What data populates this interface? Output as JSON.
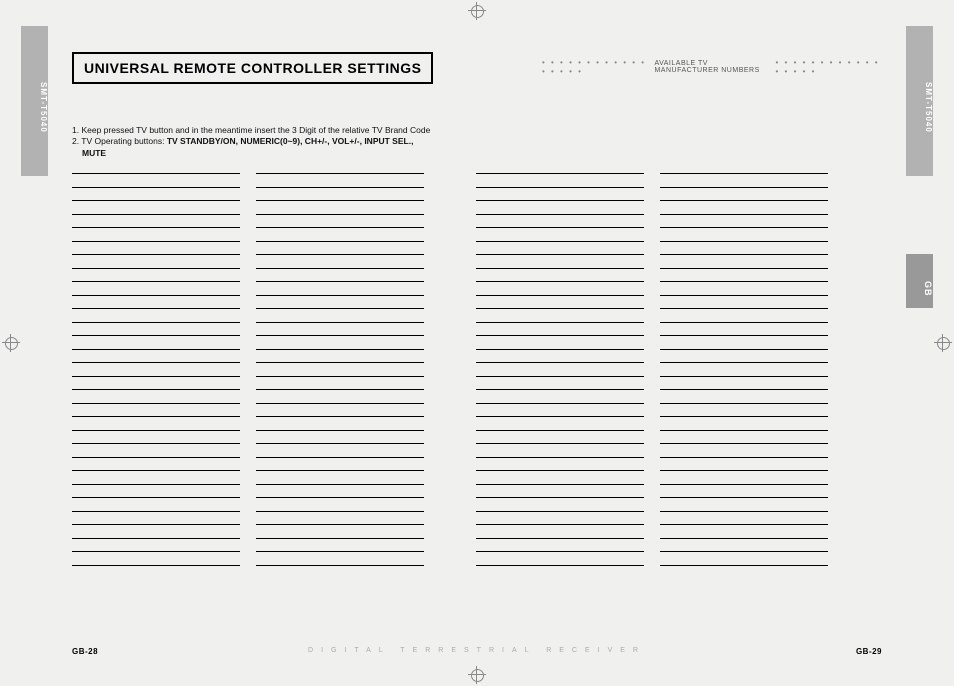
{
  "product_code": "SMT-T5040",
  "lang_tab": "GB",
  "heading": "UNIVERSAL REMOTE CONTROLLER SETTINGS",
  "right_header": "AVAILABLE TV MANUFACTURER NUMBERS",
  "instructions": {
    "line1_prefix": "1. Keep pressed TV button and in the meantime insert the 3 Digit of the relative TV Brand Code",
    "line2_prefix": "2. TV Operating buttons: ",
    "line2_bold": "TV STANDBY/ON, NUMERIC(0~9), CH+/-, VOL+/-, INPUT SEL.,",
    "line3_bold": "MUTE"
  },
  "blank_lines_per_column": 30,
  "columns_count": 4,
  "page_left": "GB-28",
  "page_right": "GB-29",
  "footer_text": "DIGITAL TERRESTRIAL RECEIVER",
  "colors": {
    "tab_bg": "#b2b2b2",
    "tab_gb_bg": "#999999",
    "page_bg": "#f0f0ef",
    "line_color": "#000000",
    "footer_text_color": "#aaaaaa",
    "header_dots_color": "#888888"
  },
  "dot_leader": "• • • • • • • • • • • • • • • • •"
}
